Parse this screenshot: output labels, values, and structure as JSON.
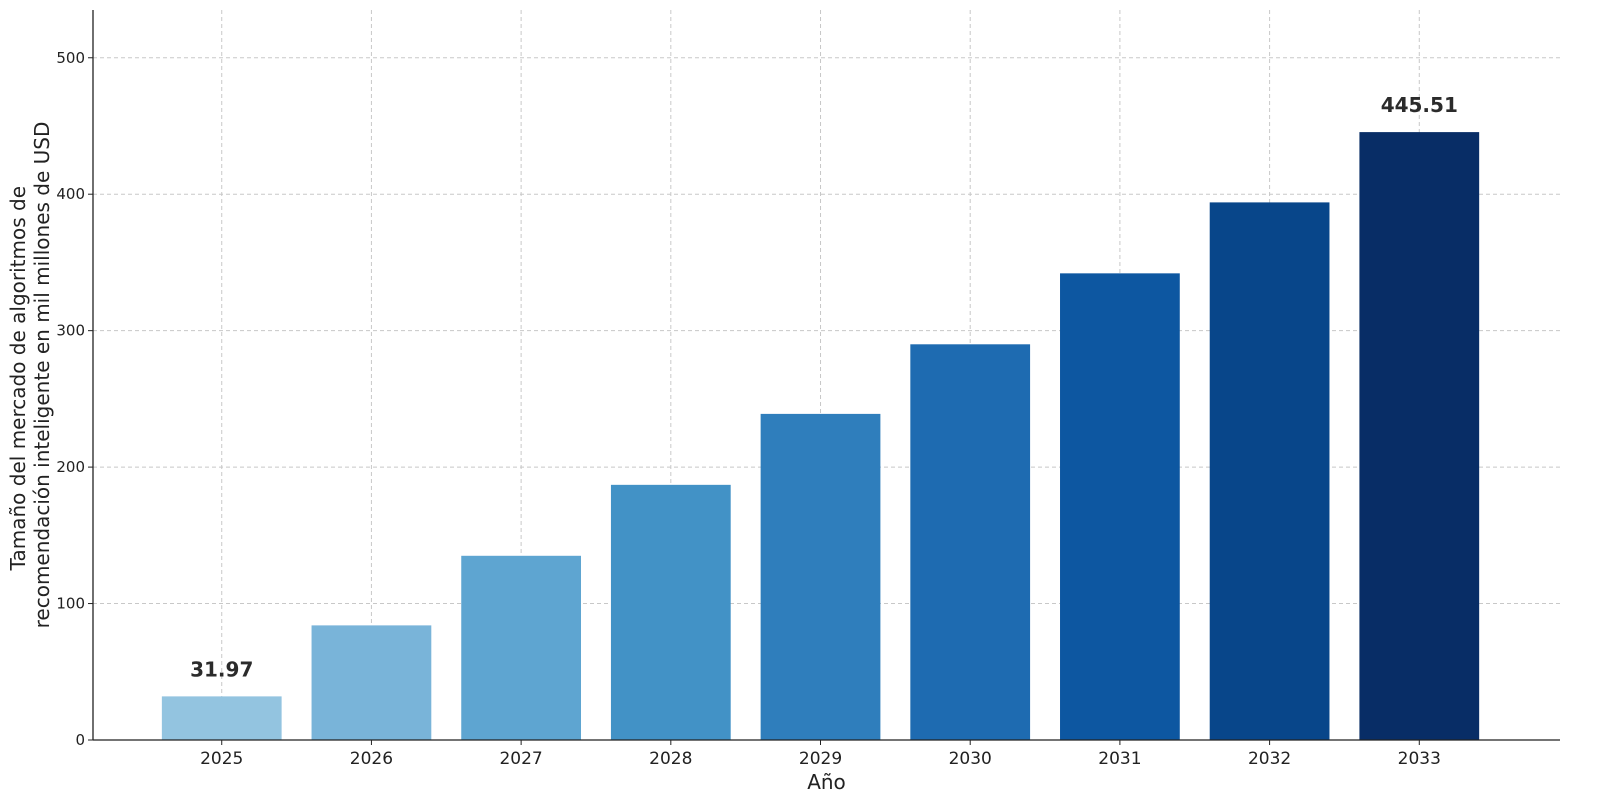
{
  "chart_data": {
    "type": "bar",
    "title": "",
    "xlabel": "Año",
    "ylabel_lines": [
      "Tamaño del mercado de algoritmos de",
      "recomendación inteligente en mil millones de USD"
    ],
    "categories": [
      "2025",
      "2026",
      "2027",
      "2028",
      "2029",
      "2030",
      "2031",
      "2032",
      "2033"
    ],
    "values": [
      31.97,
      84,
      135,
      187,
      239,
      290,
      342,
      394,
      445.51
    ],
    "colors": [
      "#93c4e0",
      "#79b4d9",
      "#5ea5d1",
      "#4292c6",
      "#2f7ebc",
      "#1e6bb1",
      "#0d57a1",
      "#08468a",
      "#082d66"
    ],
    "data_labels": [
      {
        "index": 0,
        "text": "31.97"
      },
      {
        "index": 8,
        "text": "445.51"
      }
    ],
    "ylim": [
      0,
      535
    ],
    "yticks": [
      0,
      100,
      200,
      300,
      400,
      500
    ],
    "grid": true,
    "legend": "none"
  }
}
